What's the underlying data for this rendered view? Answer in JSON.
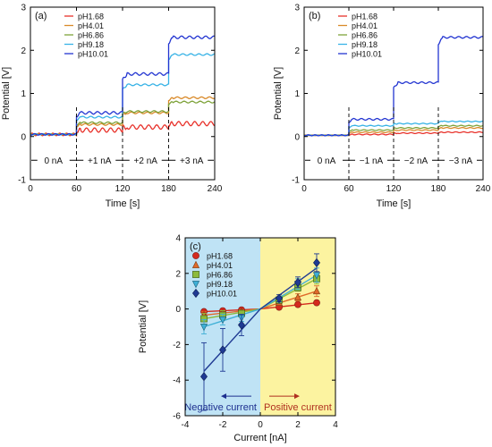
{
  "colors": {
    "pH1.68": "#e8322b",
    "pH4.01": "#d98a2a",
    "pH6.86": "#7fa33b",
    "pH9.18": "#38b3e6",
    "pH10.01": "#2335d1",
    "c_series": [
      "#d42a1e",
      "#e06a2a",
      "#8dbb3c",
      "#3fb0d6",
      "#1f3a93"
    ],
    "neg_bg": "#bfe3f5",
    "pos_bg": "#fcf3a0",
    "neg_text": "#1d2f8f",
    "pos_text": "#b03020"
  },
  "chart_data": [
    {
      "id": "a",
      "panel_label": "(a)",
      "type": "line",
      "xlabel": "Time [s]",
      "ylabel": "Potential [V]",
      "xlim": [
        0,
        240
      ],
      "ylim": [
        -1,
        3
      ],
      "xticks": [
        "0",
        "60",
        "120",
        "180",
        "240"
      ],
      "yticks": [
        "-1",
        "0",
        "1",
        "2",
        "3"
      ],
      "segment_labels": [
        "0 nA",
        "+1 nA",
        "+2 nA",
        "+3 nA"
      ],
      "segment_boundaries": [
        60,
        120,
        180
      ],
      "legend_position": "top-left",
      "series": [
        {
          "name": "pH1.68",
          "levels": [
            0.05,
            0.15,
            0.22,
            0.3
          ],
          "ripple": 0.05
        },
        {
          "name": "pH4.01",
          "levels": [
            0.05,
            0.28,
            0.55,
            0.9
          ],
          "ripple": 0.02
        },
        {
          "name": "pH6.86",
          "levels": [
            0.05,
            0.32,
            0.58,
            0.8
          ],
          "ripple": 0.02
        },
        {
          "name": "pH9.18",
          "levels": [
            0.05,
            0.45,
            1.2,
            1.9
          ],
          "ripple": 0.02
        },
        {
          "name": "pH10.01",
          "levels": [
            0.05,
            0.55,
            1.45,
            2.3
          ],
          "ripple": 0.03
        }
      ]
    },
    {
      "id": "b",
      "panel_label": "(b)",
      "type": "line",
      "xlabel": "Time [s]",
      "ylabel": "Potential [V]",
      "xlim": [
        0,
        240
      ],
      "ylim": [
        -1,
        3
      ],
      "xticks": [
        "0",
        "60",
        "120",
        "180",
        "240"
      ],
      "yticks": [
        "-1",
        "0",
        "1",
        "2",
        "3"
      ],
      "segment_labels": [
        "0 nA",
        "−1 nA",
        "−2 nA",
        "−3 nA"
      ],
      "segment_boundaries": [
        60,
        120,
        180
      ],
      "legend_position": "top-left",
      "series": [
        {
          "name": "pH1.68",
          "levels": [
            0.03,
            0.05,
            0.08,
            0.1
          ],
          "ripple": 0.01
        },
        {
          "name": "pH4.01",
          "levels": [
            0.03,
            0.1,
            0.15,
            0.2
          ],
          "ripple": 0.01
        },
        {
          "name": "pH6.86",
          "levels": [
            0.03,
            0.15,
            0.2,
            0.25
          ],
          "ripple": 0.01
        },
        {
          "name": "pH9.18",
          "levels": [
            0.03,
            0.25,
            0.3,
            0.35
          ],
          "ripple": 0.01
        },
        {
          "name": "pH10.01",
          "levels": [
            0.03,
            0.4,
            1.25,
            2.3
          ],
          "ripple": 0.02
        }
      ]
    },
    {
      "id": "c",
      "panel_label": "(c)",
      "type": "scatter",
      "xlabel": "Current [nA]",
      "ylabel": "Potential [V]",
      "xlim": [
        -4,
        4
      ],
      "ylim": [
        -6,
        4
      ],
      "xticks": [
        "-4",
        "-2",
        "0",
        "2",
        "4"
      ],
      "yticks": [
        "-6",
        "-4",
        "-2",
        "0",
        "2",
        "4"
      ],
      "x": [
        -3,
        -2,
        -1,
        0,
        1,
        2,
        3
      ],
      "legend_position": "top-left",
      "annotations": {
        "negative": "Negative current",
        "positive": "Positive current"
      },
      "series": [
        {
          "name": "pH1.68",
          "marker": "circle",
          "y": [
            -0.15,
            -0.1,
            -0.05,
            0,
            0.1,
            0.25,
            0.35
          ],
          "err": [
            0.1,
            0.1,
            0.05,
            0,
            0.05,
            0.05,
            0.05
          ],
          "fit": [
            [
              -3,
              -0.15
            ],
            [
              3,
              0.35
            ]
          ]
        },
        {
          "name": "pH4.01",
          "marker": "triangle-up",
          "y": [
            -0.35,
            -0.25,
            -0.15,
            0,
            0.35,
            0.65,
            1.0
          ],
          "err": [
            0.2,
            0.15,
            0.1,
            0,
            0.1,
            0.2,
            0.3
          ],
          "fit": [
            [
              -3,
              -0.35
            ],
            [
              3,
              1.0
            ]
          ]
        },
        {
          "name": "pH6.86",
          "marker": "square",
          "y": [
            -0.55,
            -0.35,
            -0.25,
            0,
            0.5,
            1.2,
            1.7
          ],
          "err": [
            0.3,
            0.25,
            0.15,
            0,
            0.1,
            0.2,
            0.3
          ],
          "fit": [
            [
              -3,
              -0.55
            ],
            [
              3,
              1.7
            ]
          ]
        },
        {
          "name": "pH9.18",
          "marker": "triangle-down",
          "y": [
            -1.0,
            -0.6,
            -0.5,
            0,
            0.5,
            1.4,
            1.9
          ],
          "err": [
            0.4,
            0.3,
            0.2,
            0,
            0.1,
            0.3,
            0.4
          ],
          "fit": [
            [
              -3,
              -1.0
            ],
            [
              3,
              1.9
            ]
          ]
        },
        {
          "name": "pH10.01",
          "marker": "diamond",
          "y": [
            -3.8,
            -2.3,
            -0.9,
            0,
            0.6,
            1.5,
            2.6
          ],
          "err": [
            1.9,
            1.2,
            0.6,
            0,
            0.2,
            0.3,
            0.5
          ],
          "fit": [
            [
              -3,
              -3.5
            ],
            [
              3,
              2.3
            ]
          ]
        }
      ]
    }
  ]
}
